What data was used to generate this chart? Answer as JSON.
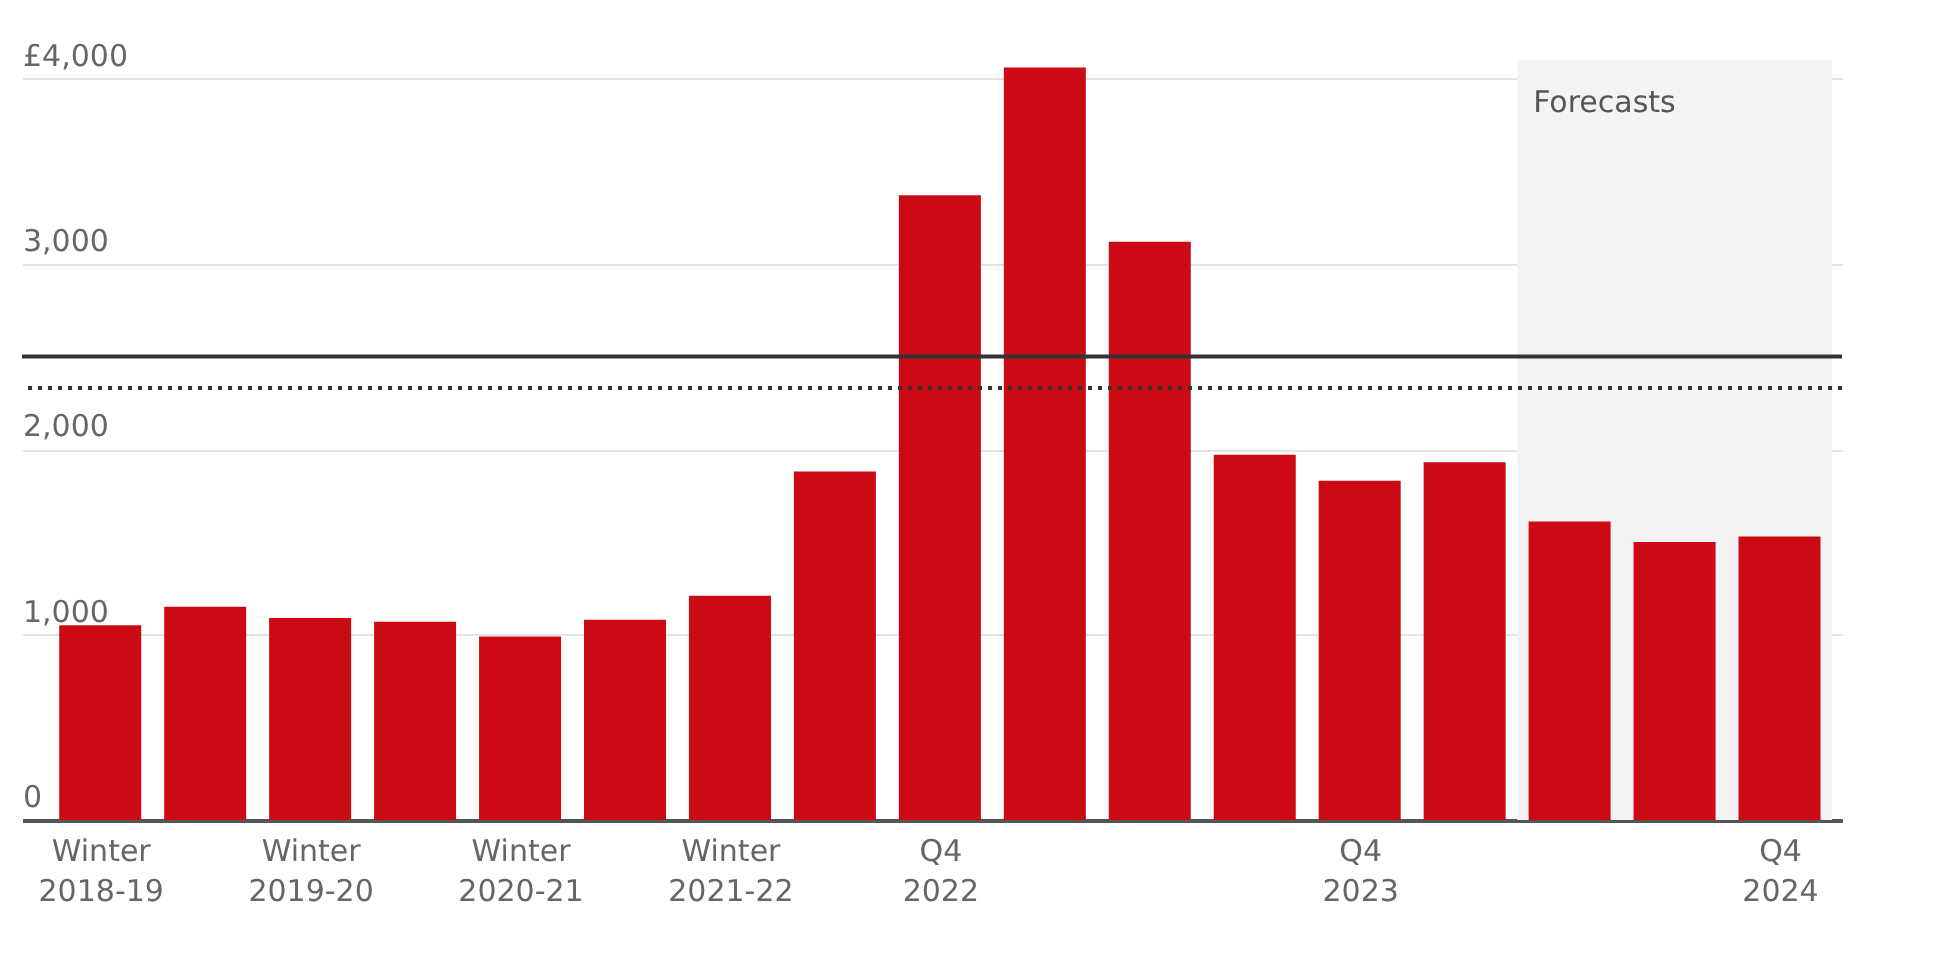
{
  "chart_data": {
    "type": "bar",
    "categories": [
      "Winter 2018-19",
      null,
      "Winter 2019-20",
      null,
      "Winter 2020-21",
      null,
      "Winter 2021-22",
      null,
      "Q4 2022",
      null,
      null,
      null,
      "Q4 2023",
      null,
      null,
      null,
      "Q4 2024"
    ],
    "values": [
      1050,
      1150,
      1090,
      1070,
      990,
      1080,
      1210,
      1880,
      3370,
      4060,
      3120,
      1970,
      1830,
      1930,
      1610,
      1500,
      1530
    ],
    "color": "#cc0a14",
    "ylim": [
      0,
      4100
    ],
    "yticks": [
      0,
      {
        "value": 1000,
        "label": "1,000"
      },
      {
        "value": 2000,
        "label": "2,000"
      },
      {
        "value": 3000,
        "label": "3,000"
      },
      {
        "value": 4000,
        "label": "£4,000"
      }
    ],
    "grid": "y",
    "ref_lines": [
      {
        "axis": "y",
        "value": 2500,
        "color": "#333333",
        "line_style": "solid"
      },
      {
        "axis": "y",
        "value": 2330,
        "color": "#333333",
        "line_style": "dotted"
      }
    ],
    "annotations": [
      "Forecasts"
    ]
  }
}
